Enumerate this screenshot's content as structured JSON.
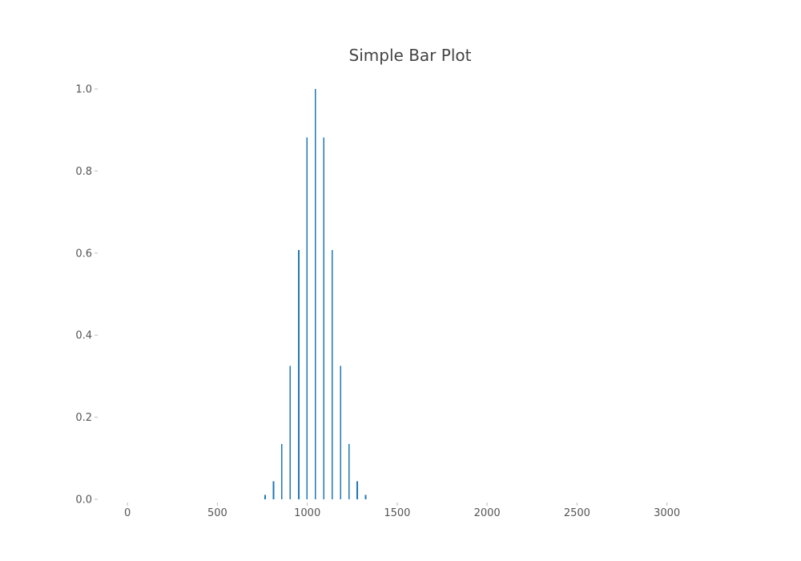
{
  "chart_data": {
    "type": "bar",
    "title": "Simple Bar Plot",
    "xlabel": "",
    "ylabel": "",
    "xlim": [
      -130,
      3300
    ],
    "ylim": [
      0,
      1.0
    ],
    "x_ticks": [
      0,
      500,
      1000,
      1500,
      2000,
      2500,
      3000
    ],
    "x_tick_labels": [
      "0",
      "500",
      "1000",
      "1500",
      "2000",
      "2500",
      "3000"
    ],
    "y_ticks": [
      0,
      0.2,
      0.4,
      0.6,
      0.8,
      1.0
    ],
    "y_tick_labels": [
      "0.0",
      "0.2",
      "0.4",
      "0.6",
      "0.8",
      "1.0"
    ],
    "grid": false,
    "legend": "none",
    "bar_color": "#1f77b4",
    "series": [
      {
        "x": [
          765,
          812,
          858,
          905,
          952,
          998,
          1045,
          1092,
          1138,
          1185,
          1232,
          1278,
          1325
        ],
        "values": [
          0.011,
          0.044,
          0.135,
          0.325,
          0.607,
          0.882,
          1.0,
          0.882,
          0.607,
          0.325,
          0.135,
          0.044,
          0.011
        ]
      },
      {
        "x": [
          905,
          952,
          998,
          1045,
          1092,
          1138,
          1185,
          1232,
          1278
        ],
        "values": [
          0.044,
          0.081,
          0.119,
          0.135,
          0.119,
          0.081,
          0.044,
          0.018,
          0.005
        ]
      }
    ]
  }
}
